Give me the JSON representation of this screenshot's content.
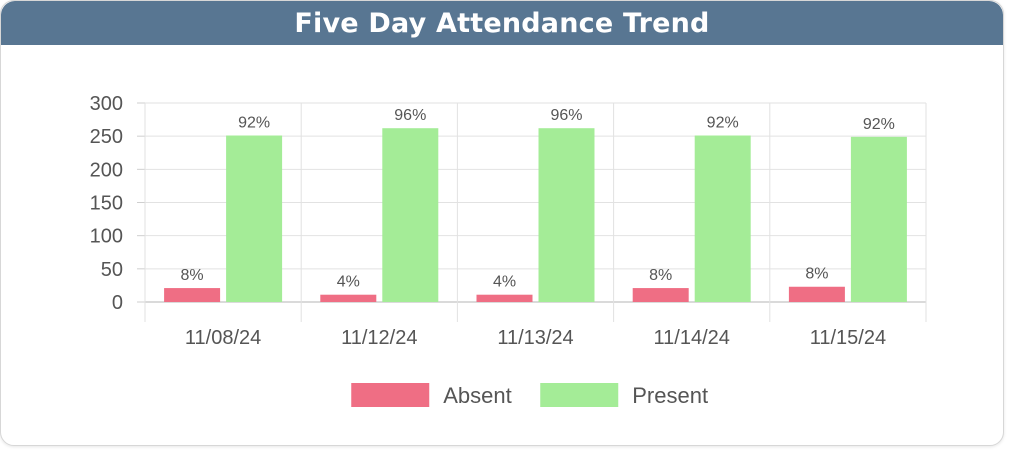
{
  "header": {
    "title": "Five Day Attendance Trend"
  },
  "chart_data": {
    "type": "bar",
    "title": "Five Day Attendance Trend",
    "categories": [
      "11/08/24",
      "11/12/24",
      "11/13/24",
      "11/14/24",
      "11/15/24"
    ],
    "series": [
      {
        "name": "Absent",
        "color": "#ef6e84",
        "values": [
          21,
          11,
          11,
          21,
          23
        ],
        "labels": [
          "8%",
          "4%",
          "4%",
          "8%",
          "8%"
        ]
      },
      {
        "name": "Present",
        "color": "#a4ec97",
        "values": [
          251,
          262,
          262,
          251,
          249
        ],
        "labels": [
          "92%",
          "96%",
          "96%",
          "92%",
          "92%"
        ]
      }
    ],
    "ylim": [
      0,
      300
    ],
    "yticks": [
      0,
      50,
      100,
      150,
      200,
      250,
      300
    ],
    "xlabel": "",
    "ylabel": "",
    "grid": true,
    "legend": "bottom"
  }
}
